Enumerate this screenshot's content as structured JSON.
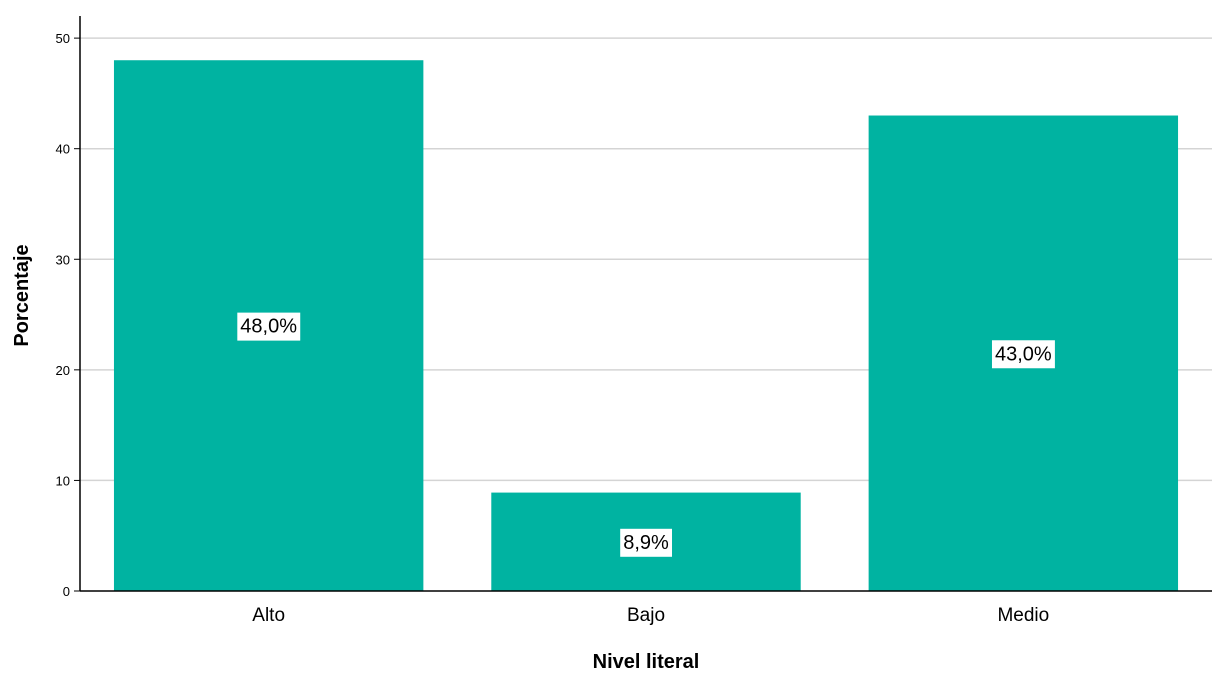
{
  "chart_data": {
    "type": "bar",
    "title": "",
    "xlabel": "Nivel literal",
    "ylabel": "Porcentaje",
    "categories": [
      "Alto",
      "Bajo",
      "Medio"
    ],
    "values": [
      48.0,
      8.9,
      43.0
    ],
    "data_labels": [
      "48,0%",
      "8,9%",
      "43,0%"
    ],
    "ylim": [
      0,
      52
    ],
    "yticks": [
      0,
      10,
      20,
      30,
      40,
      50
    ],
    "ytick_labels": [
      "0",
      "10",
      "20",
      "30",
      "40",
      "50"
    ],
    "grid": true,
    "legend": "none",
    "colors": {
      "bar": "#00b3a1",
      "grid": "#d4d4d4",
      "axis": "#000000",
      "label_box": "#ffffff"
    }
  }
}
